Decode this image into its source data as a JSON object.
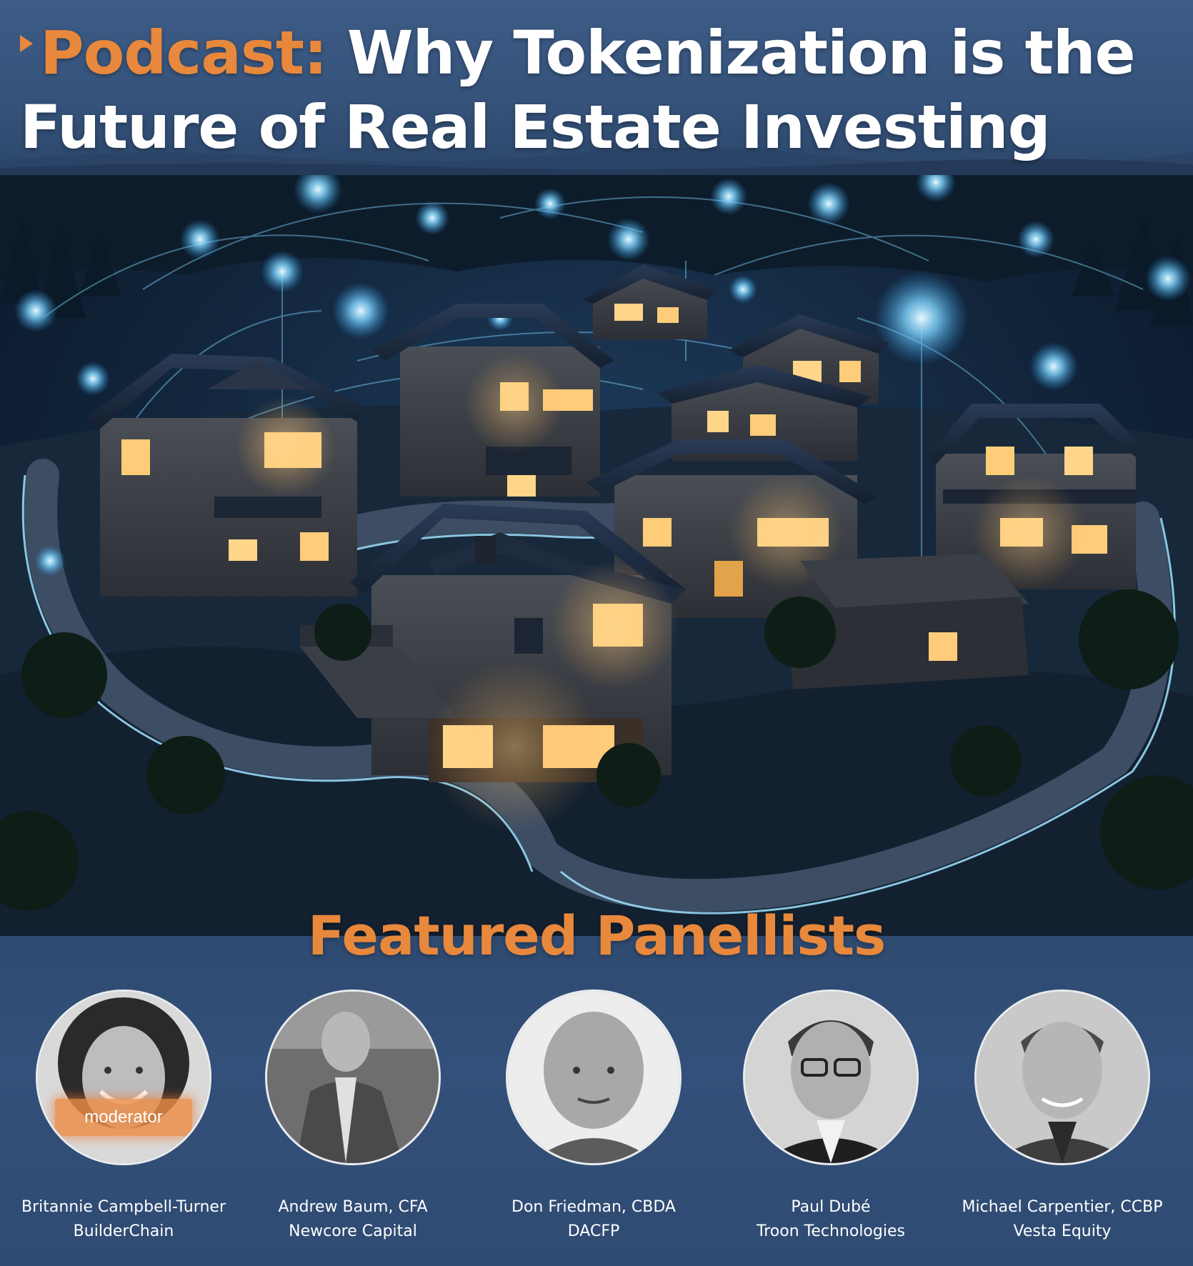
{
  "header": {
    "play_icon": "play-triangle-icon",
    "title_accent": "Podcast:",
    "title_rest": " Why Tokenization is the Future of Real Estate Investing"
  },
  "scene": {
    "image": "illuminated-neighborhood-houses-illustration"
  },
  "panel": {
    "heading": "Featured Panellists",
    "panelists": [
      {
        "name": "Britannie Campbell-Turner",
        "company": "BuilderChain",
        "badge": "moderator"
      },
      {
        "name": "Andrew Baum, CFA",
        "company": "Newcore Capital"
      },
      {
        "name": "Don Friedman, CBDA",
        "company": "DACFP"
      },
      {
        "name": "Paul Dubé",
        "company": "Troon Technologies"
      },
      {
        "name": "Michael Carpentier, CCBP",
        "company": "Vesta Equity"
      }
    ]
  },
  "colors": {
    "accent": "#e8883c",
    "panel_bg": "#2f4b72",
    "header_bg": "#3d5c86",
    "glow": "#7fd4ff"
  }
}
